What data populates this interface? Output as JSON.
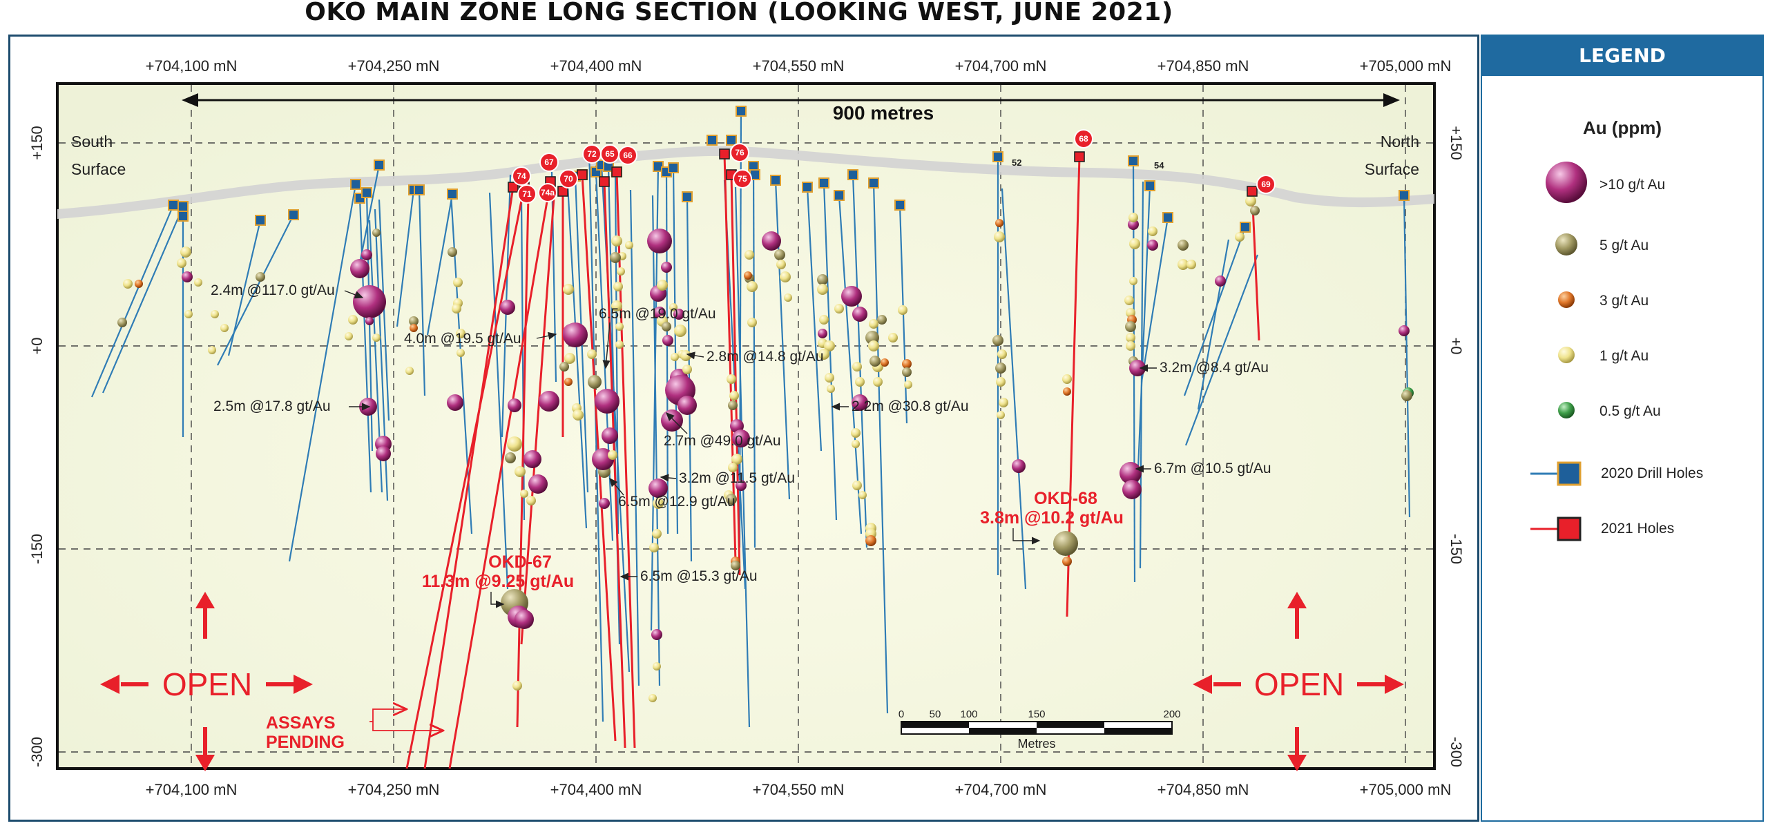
{
  "title": "OKO MAIN ZONE LONG SECTION (LOOKING WEST, JUNE 2021)",
  "northing_ticks": [
    "+704,100 mN",
    "+704,250 mN",
    "+704,400 mN",
    "+704,550 mN",
    "+704,700 mN",
    "+704,850 mN",
    "+705,000 mN"
  ],
  "elevation_ticks": [
    "+150",
    "+0",
    "-150",
    "-300"
  ],
  "span_label": "900 metres",
  "surface_labels": {
    "south_1": "South",
    "south_2": "Surface",
    "north_1": "North",
    "north_2": "Surface"
  },
  "open_label": "OPEN",
  "assays_pending": [
    "ASSAYS",
    "PENDING"
  ],
  "scale_bar": {
    "ticks": [
      "0",
      "50",
      "100",
      "150",
      "200"
    ],
    "unit": "Metres"
  },
  "hole_numbers_2021": [
    "74",
    "67",
    "72",
    "65",
    "66",
    "71",
    "74a",
    "70",
    "76",
    "75",
    "68",
    "69"
  ],
  "hole_numbers_2020": [
    "52",
    "54"
  ],
  "intercepts": [
    "2.4m @117.0 gt/Au",
    "4.0m @19.5 gt/Au",
    "6.5m @19.0 gt/Au",
    "2.8m @14.8 gt/Au",
    "2.5m @17.8 gt/Au",
    "2.7m @49.0 gt/Au",
    "2.2m @30.8 gt/Au",
    "3.2m @11.5 gt/Au",
    "6.5m @12.9 gt/Au",
    "6.5m @15.3 gt/Au",
    "3.2m @8.4 gt/Au",
    "6.7m @10.5 gt/Au"
  ],
  "highlights": {
    "okd67_name": "OKD-67",
    "okd67_value": "11.3m @9.25 gt/Au",
    "okd68_name": "OKD-68",
    "okd68_value": "3.8m @10.2 gt/Au"
  },
  "legend": {
    "header": "LEGEND",
    "au_title": "Au (ppm)",
    "grades": [
      {
        "label": ">10 g/t Au",
        "color": "#b0307f"
      },
      {
        "label": "5 g/t Au",
        "color": "#a29a63"
      },
      {
        "label": "3 g/t Au",
        "color": "#e0772a"
      },
      {
        "label": "1 g/t Au",
        "color": "#efe38d"
      },
      {
        "label": "0.5 g/t Au",
        "color": "#3f9f4a"
      }
    ],
    "holes": [
      {
        "label": "2020 Drill Holes",
        "line_color": "#2f7cb5",
        "marker_color": "#1e5f9a",
        "border": "#e0a030"
      },
      {
        "label": "2021 Holes",
        "line_color": "#e8202a",
        "marker_color": "#e8202a",
        "border": "#222222"
      }
    ]
  },
  "colors": {
    "frame": "#1d4c6e",
    "red": "#e8202a",
    "blue": "#2f7cb5"
  }
}
